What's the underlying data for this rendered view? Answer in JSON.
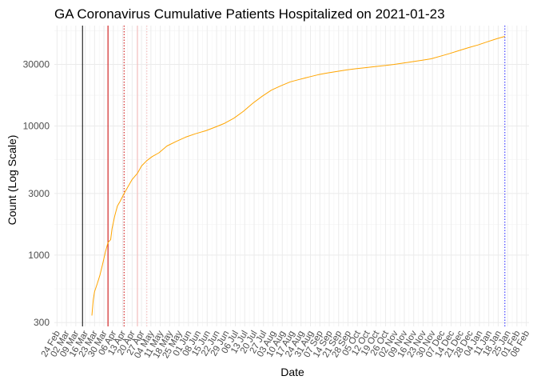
{
  "chart_data": {
    "type": "line",
    "title": "GA Coronavirus Cumulative Patients Hospitalized on 2021-01-23",
    "xlabel": "Date",
    "ylabel": "Count (Log Scale)",
    "y_scale": "log10",
    "ylim": [
      280,
      60000
    ],
    "xlim": [
      "2020-02-22",
      "2021-02-10"
    ],
    "y_ticks": [
      300,
      1000,
      3000,
      10000,
      30000
    ],
    "y_tick_labels": [
      "300",
      "1000",
      "3000",
      "10000",
      "30000"
    ],
    "x_ticks": [
      "2020-02-24",
      "2020-03-02",
      "2020-03-09",
      "2020-03-16",
      "2020-03-23",
      "2020-03-30",
      "2020-04-06",
      "2020-04-13",
      "2020-04-20",
      "2020-04-27",
      "2020-05-04",
      "2020-05-11",
      "2020-05-18",
      "2020-05-25",
      "2020-06-01",
      "2020-06-08",
      "2020-06-15",
      "2020-06-22",
      "2020-06-29",
      "2020-07-06",
      "2020-07-13",
      "2020-07-20",
      "2020-07-27",
      "2020-08-03",
      "2020-08-10",
      "2020-08-17",
      "2020-08-24",
      "2020-08-31",
      "2020-09-07",
      "2020-09-14",
      "2020-09-21",
      "2020-09-28",
      "2020-10-05",
      "2020-10-12",
      "2020-10-19",
      "2020-10-26",
      "2020-11-02",
      "2020-11-09",
      "2020-11-16",
      "2020-11-23",
      "2020-11-30",
      "2020-12-07",
      "2020-12-14",
      "2020-12-21",
      "2020-12-28",
      "2021-01-04",
      "2021-01-11",
      "2021-01-18",
      "2021-01-25",
      "2021-02-01",
      "2021-02-08"
    ],
    "x_tick_labels": [
      "24 Feb",
      "02 Mar",
      "09 Mar",
      "16 Mar",
      "23 Mar",
      "30 Mar",
      "06 Apr",
      "13 Apr",
      "20 Apr",
      "27 Apr",
      "04 May",
      "11 May",
      "18 May",
      "25 May",
      "01 Jun",
      "08 Jun",
      "15 Jun",
      "22 Jun",
      "29 Jun",
      "06 Jul",
      "13 Jul",
      "20 Jul",
      "27 Jul",
      "03 Aug",
      "10 Aug",
      "17 Aug",
      "24 Aug",
      "31 Aug",
      "07 Sep",
      "14 Sep",
      "21 Sep",
      "28 Sep",
      "05 Oct",
      "12 Oct",
      "19 Oct",
      "26 Oct",
      "02 Nov",
      "09 Nov",
      "16 Nov",
      "23 Nov",
      "30 Nov",
      "07 Dec",
      "14 Dec",
      "21 Dec",
      "28 Dec",
      "04 Jan",
      "11 Jan",
      "18 Jan",
      "25 Jan",
      "01 Feb",
      "08 Feb"
    ],
    "series": [
      {
        "name": "Cumulative Patients Hospitalized",
        "color": "#FFA500",
        "points": [
          [
            "2020-03-21",
            340
          ],
          [
            "2020-03-22",
            450
          ],
          [
            "2020-03-23",
            520
          ],
          [
            "2020-03-25",
            600
          ],
          [
            "2020-03-27",
            700
          ],
          [
            "2020-03-29",
            850
          ],
          [
            "2020-03-31",
            1050
          ],
          [
            "2020-04-02",
            1250
          ],
          [
            "2020-04-04",
            1320
          ],
          [
            "2020-04-05",
            1600
          ],
          [
            "2020-04-07",
            2000
          ],
          [
            "2020-04-09",
            2400
          ],
          [
            "2020-04-11",
            2600
          ],
          [
            "2020-04-14",
            3000
          ],
          [
            "2020-04-17",
            3400
          ],
          [
            "2020-04-20",
            3850
          ],
          [
            "2020-04-24",
            4300
          ],
          [
            "2020-04-27",
            4900
          ],
          [
            "2020-05-01",
            5400
          ],
          [
            "2020-05-05",
            5800
          ],
          [
            "2020-05-10",
            6200
          ],
          [
            "2020-05-16",
            7000
          ],
          [
            "2020-05-23",
            7600
          ],
          [
            "2020-05-30",
            8200
          ],
          [
            "2020-06-06",
            8700
          ],
          [
            "2020-06-14",
            9200
          ],
          [
            "2020-06-21",
            9800
          ],
          [
            "2020-06-28",
            10500
          ],
          [
            "2020-07-05",
            11500
          ],
          [
            "2020-07-12",
            13000
          ],
          [
            "2020-07-19",
            15000
          ],
          [
            "2020-07-26",
            17000
          ],
          [
            "2020-08-02",
            19000
          ],
          [
            "2020-08-09",
            20500
          ],
          [
            "2020-08-16",
            22000
          ],
          [
            "2020-08-23",
            23000
          ],
          [
            "2020-08-30",
            24000
          ],
          [
            "2020-09-06",
            25000
          ],
          [
            "2020-09-13",
            25800
          ],
          [
            "2020-09-20",
            26500
          ],
          [
            "2020-09-27",
            27200
          ],
          [
            "2020-10-04",
            27800
          ],
          [
            "2020-10-11",
            28300
          ],
          [
            "2020-10-18",
            28900
          ],
          [
            "2020-10-25",
            29400
          ],
          [
            "2020-11-01",
            30000
          ],
          [
            "2020-11-08",
            30700
          ],
          [
            "2020-11-15",
            31500
          ],
          [
            "2020-11-22",
            32300
          ],
          [
            "2020-11-29",
            33200
          ],
          [
            "2020-12-06",
            34800
          ],
          [
            "2020-12-13",
            36500
          ],
          [
            "2020-12-20",
            38500
          ],
          [
            "2020-12-27",
            40500
          ],
          [
            "2021-01-03",
            42500
          ],
          [
            "2021-01-10",
            45000
          ],
          [
            "2021-01-17",
            47500
          ],
          [
            "2021-01-23",
            49500
          ]
        ]
      }
    ],
    "reference_lines": [
      {
        "date": "2020-03-14",
        "color": "#000000",
        "style": "solid"
      },
      {
        "date": "2020-04-02",
        "color": "#cc0000",
        "style": "solid"
      },
      {
        "date": "2020-04-14",
        "color": "#cc0000",
        "style": "dotted"
      },
      {
        "date": "2020-04-24",
        "color": "#f4b6b6",
        "style": "solid"
      },
      {
        "date": "2020-05-01",
        "color": "#f4b6b6",
        "style": "dotted"
      },
      {
        "date": "2021-01-23",
        "color": "#1a1aff",
        "style": "dotted"
      }
    ]
  }
}
